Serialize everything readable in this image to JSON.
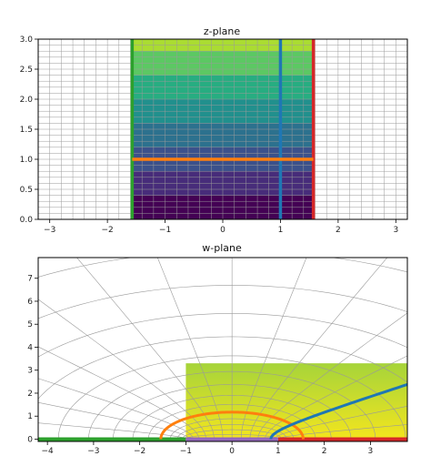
{
  "colors": {
    "band_colors": [
      "#440154",
      "#472c7a",
      "#3b518b",
      "#2c718e",
      "#21908d",
      "#27ad81",
      "#5cc863",
      "#aadc32"
    ],
    "grid": "#9a9a9a",
    "green": "#2ca02c",
    "blue": "#1f77b4",
    "orange": "#ff7f0e",
    "red": "#d62728",
    "purple": "#9467bd",
    "w_fill_top": "#a6d43a",
    "w_fill_bottom": "#f3e51e"
  },
  "chart_data": [
    {
      "type": "heatmap",
      "title": "z-plane",
      "xlim": [
        -3.2,
        3.2
      ],
      "ylim": [
        0,
        3.0
      ],
      "xticks": [
        -3,
        -2,
        -1,
        0,
        1,
        2,
        3
      ],
      "xtick_labels": [
        "−3",
        "−2",
        "−1",
        "0",
        "1",
        "2",
        "3"
      ],
      "yticks": [
        0,
        0.5,
        1.0,
        1.5,
        2.0,
        2.5,
        3.0
      ],
      "ytick_labels": [
        "0.0",
        "0.5",
        "1.0",
        "1.5",
        "2.0",
        "2.5",
        "3.0"
      ],
      "grid": true,
      "grid_x_step": 0.2,
      "grid_y_step": 0.1,
      "strip_x": [
        -1.5708,
        1.5708
      ],
      "bands_y": [
        0,
        0.4,
        0.8,
        1.2,
        1.6,
        2.0,
        2.4,
        2.8,
        3.0
      ],
      "boundary_curves": [
        {
          "color": "green",
          "points": [
            [
              -1.5708,
              0
            ],
            [
              -1.5708,
              3.0
            ]
          ]
        },
        {
          "color": "red",
          "points": [
            [
              1.5708,
              0
            ],
            [
              1.5708,
              3.0
            ]
          ]
        },
        {
          "color": "blue",
          "points": [
            [
              1.0,
              0
            ],
            [
              1.0,
              3.0
            ]
          ]
        },
        {
          "color": "orange",
          "points": [
            [
              -1.5708,
              1.0
            ],
            [
              1.5708,
              1.0
            ]
          ]
        }
      ]
    },
    {
      "type": "line",
      "title": "w-plane",
      "xlim": [
        -4.2,
        3.8
      ],
      "ylim": [
        -0.1,
        7.9
      ],
      "xticks": [
        -4,
        -3,
        -2,
        -1,
        0,
        1,
        2,
        3
      ],
      "xtick_labels": [
        "−4",
        "−3",
        "−2",
        "−1",
        "0",
        "1",
        "2",
        "3"
      ],
      "yticks": [
        0,
        1,
        2,
        3,
        4,
        5,
        6,
        7
      ],
      "ytick_labels": [
        "0",
        "1",
        "2",
        "3",
        "4",
        "5",
        "6",
        "7"
      ],
      "grid": true,
      "fill_rect": {
        "x": [
          -1.0,
          3.8
        ],
        "y": [
          0,
          3.3
        ]
      },
      "segments": [
        {
          "color": "green",
          "points": [
            [
              -4.2,
              0
            ],
            [
              -1,
              0
            ]
          ]
        },
        {
          "color": "purple",
          "points": [
            [
              -1,
              0
            ],
            [
              1,
              0
            ]
          ]
        },
        {
          "color": "red",
          "points": [
            [
              1,
              0
            ],
            [
              3.8,
              0
            ]
          ]
        }
      ],
      "ellipse_orange": {
        "a": 1.543,
        "b": 1.175
      },
      "hyperbola_blue": {
        "cos_u": 0.5403,
        "sin_u": 0.8415
      }
    }
  ]
}
